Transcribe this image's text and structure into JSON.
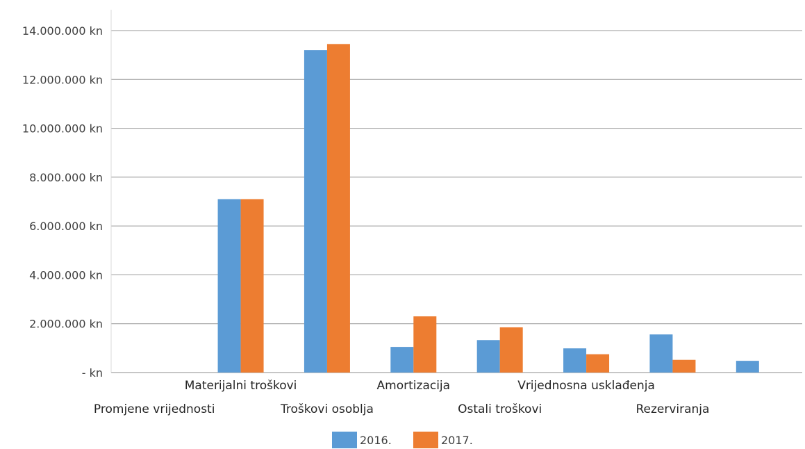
{
  "chart_data": {
    "type": "bar",
    "title": "",
    "xlabel": "",
    "ylabel": "",
    "ylim": [
      0,
      14000000
    ],
    "yticks": [
      0,
      2000000,
      4000000,
      6000000,
      8000000,
      10000000,
      12000000,
      14000000
    ],
    "ytick_labels": [
      "- kn",
      "2.000.000 kn",
      "4.000.000 kn",
      "6.000.000 kn",
      "8.000.000 kn",
      "10.000.000 kn",
      "12.000.000 kn",
      "14.000.000 kn"
    ],
    "categories": [
      "Promjene vrijednosti",
      "Materijalni troškovi",
      "Troškovi osoblja",
      "Amortizacija",
      "Ostali troškovi",
      "Vrijednosna usklađenja",
      "Rezerviranja",
      ""
    ],
    "series": [
      {
        "name": "2016.",
        "color": "#5b9bd5",
        "values": [
          0,
          7100000,
          13200000,
          1050000,
          1330000,
          990000,
          1560000,
          480000
        ]
      },
      {
        "name": "2017.",
        "color": "#ed7d31",
        "values": [
          0,
          7100000,
          13450000,
          2300000,
          1850000,
          750000,
          520000,
          0
        ]
      }
    ],
    "grid": true,
    "legend_position": "bottom"
  }
}
